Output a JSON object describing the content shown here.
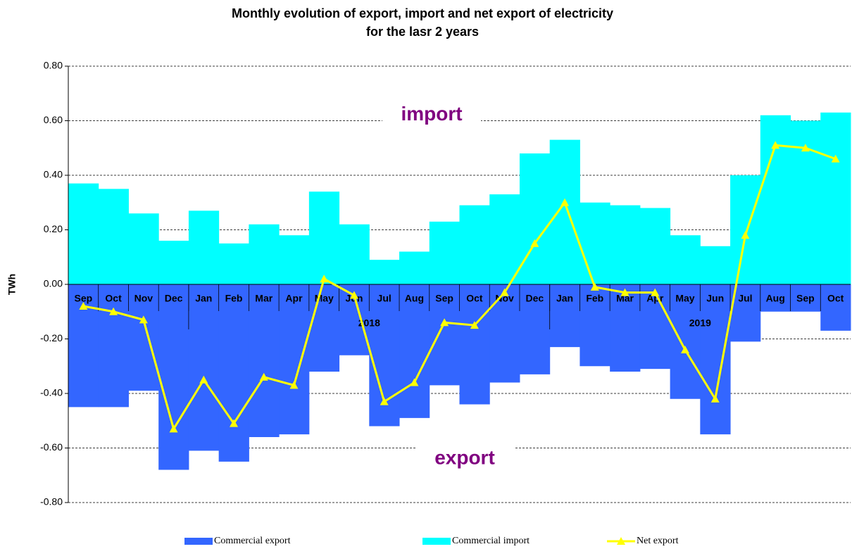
{
  "chart_data": {
    "type": "bar-line",
    "title_lines": [
      "Monthly evolution of export, import and net export of electricity",
      "for the lasr 2 years"
    ],
    "y_label": "TWh",
    "categories": [
      "Sep",
      "Oct",
      "Nov",
      "Dec",
      "Jan",
      "Feb",
      "Mar",
      "Apr",
      "May",
      "Jun",
      "Jul",
      "Aug",
      "Sep",
      "Oct",
      "Nov",
      "Dec",
      "Jan",
      "Feb",
      "Mar",
      "Apr",
      "May",
      "Jun",
      "Jul",
      "Aug",
      "Sep",
      "Oct"
    ],
    "x_groups": [
      {
        "label": null,
        "count": 4
      },
      {
        "label": "2018",
        "count": 12
      },
      {
        "label": "2019",
        "count": 10
      }
    ],
    "series": [
      {
        "name": "Commercial export",
        "kind": "bar",
        "color": "#3366ff",
        "values": [
          -0.45,
          -0.45,
          -0.39,
          -0.68,
          -0.61,
          -0.65,
          -0.56,
          -0.55,
          -0.32,
          -0.26,
          -0.52,
          -0.49,
          -0.37,
          -0.44,
          -0.36,
          -0.33,
          -0.23,
          -0.3,
          -0.32,
          -0.31,
          -0.42,
          -0.55,
          -0.21,
          -0.1,
          -0.1,
          -0.17
        ]
      },
      {
        "name": "Commercial import",
        "kind": "bar",
        "color": "#00ffff",
        "values": [
          0.37,
          0.35,
          0.26,
          0.16,
          0.27,
          0.15,
          0.22,
          0.18,
          0.34,
          0.22,
          0.09,
          0.12,
          0.23,
          0.29,
          0.33,
          0.48,
          0.53,
          0.3,
          0.29,
          0.28,
          0.18,
          0.14,
          0.4,
          0.62,
          0.6,
          0.63
        ]
      },
      {
        "name": "Net export",
        "kind": "line",
        "color": "#ffff00",
        "values": [
          -0.08,
          -0.1,
          -0.13,
          -0.53,
          -0.35,
          -0.51,
          -0.34,
          -0.37,
          0.02,
          -0.04,
          -0.43,
          -0.36,
          -0.14,
          -0.15,
          -0.03,
          0.15,
          0.3,
          -0.01,
          -0.03,
          -0.03,
          -0.24,
          -0.42,
          0.18,
          0.51,
          0.5,
          0.46
        ]
      }
    ],
    "annotations": [
      "import",
      "export"
    ],
    "ylim": [
      -0.8,
      0.8
    ],
    "yticks": [
      {
        "value": 0.8,
        "label": "0.80"
      },
      {
        "value": 0.6,
        "label": "0.60"
      },
      {
        "value": 0.4,
        "label": "0.40"
      },
      {
        "value": 0.2,
        "label": "0.20"
      },
      {
        "value": 0,
        "label": "0.00"
      },
      {
        "value": -0.2,
        "label": "-0.20"
      },
      {
        "value": -0.4,
        "label": "-0.40"
      },
      {
        "value": -0.6,
        "label": "-0.60"
      },
      {
        "value": -0.8,
        "label": "-0.80"
      }
    ],
    "grid": true,
    "legend": "bottom"
  }
}
